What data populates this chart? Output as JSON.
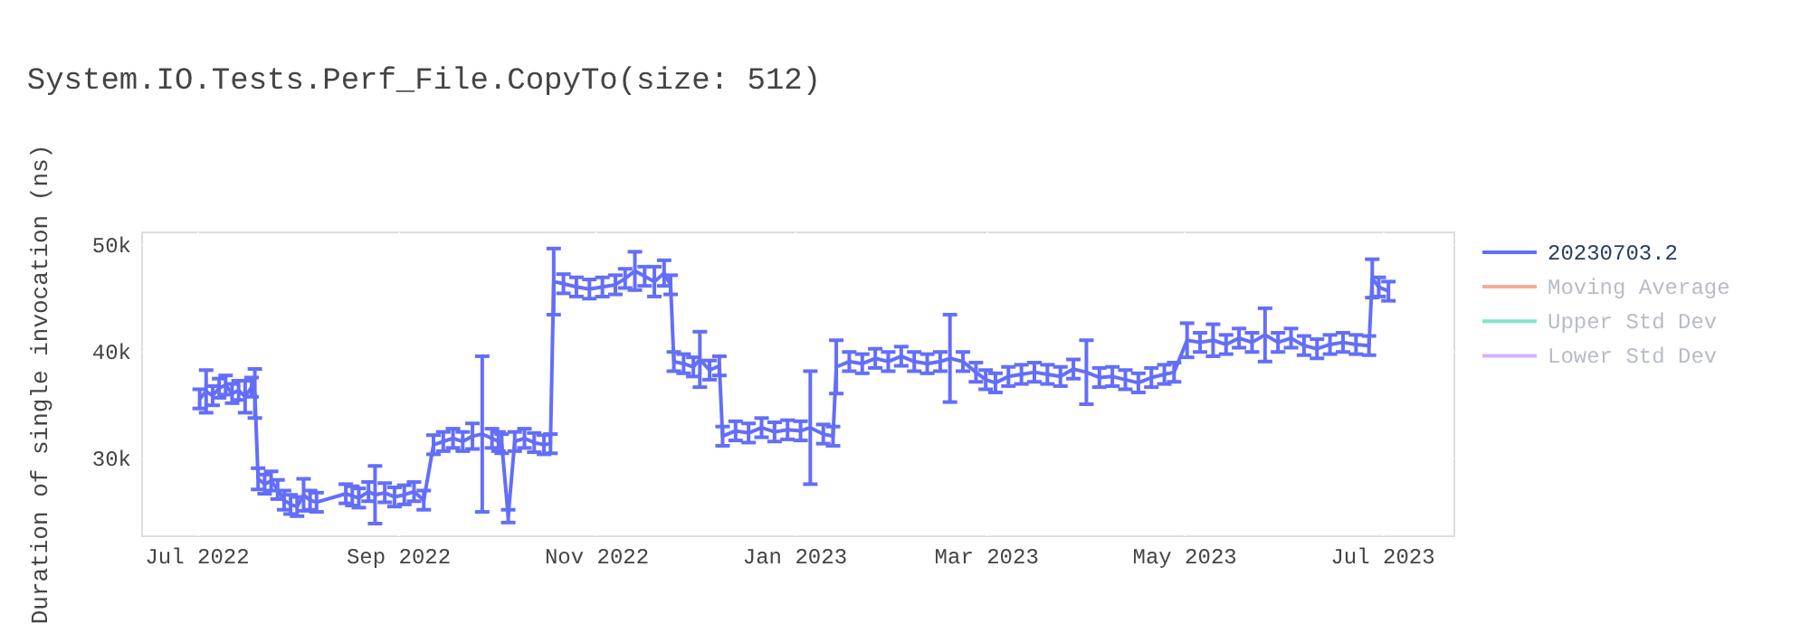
{
  "chart_data": {
    "type": "line",
    "title": "System.IO.Tests.Perf_File.CopyTo(size: 512)",
    "ylabel": "Duration of single invocation (ns)",
    "xlim": [
      "2022-06-14",
      "2023-07-23"
    ],
    "ylim": [
      22700,
      51200
    ],
    "xticks": [
      {
        "value": "2022-07-01",
        "label": "Jul 2022"
      },
      {
        "value": "2022-09-01",
        "label": "Sep 2022"
      },
      {
        "value": "2022-11-01",
        "label": "Nov 2022"
      },
      {
        "value": "2023-01-01",
        "label": "Jan 2023"
      },
      {
        "value": "2023-03-01",
        "label": "Mar 2023"
      },
      {
        "value": "2023-05-01",
        "label": "May 2023"
      },
      {
        "value": "2023-07-01",
        "label": "Jul 2023"
      }
    ],
    "yticks": [
      {
        "value": 30000,
        "label": "30k"
      },
      {
        "value": 40000,
        "label": "40k"
      },
      {
        "value": 50000,
        "label": "50k"
      }
    ],
    "grid": true,
    "legend": "top right",
    "marker": "none",
    "line_style": "solid",
    "series": [
      {
        "name": "20230703.2",
        "color": "#636efa",
        "x": [
          "2022-07-02",
          "2022-07-04",
          "2022-07-06",
          "2022-07-08",
          "2022-07-10",
          "2022-07-12",
          "2022-07-14",
          "2022-07-16",
          "2022-07-18",
          "2022-07-19",
          "2022-07-20",
          "2022-07-22",
          "2022-07-24",
          "2022-07-26",
          "2022-07-28",
          "2022-07-30",
          "2022-08-01",
          "2022-08-03",
          "2022-08-05",
          "2022-08-07",
          "2022-08-16",
          "2022-08-18",
          "2022-08-20",
          "2022-08-23",
          "2022-08-25",
          "2022-08-28",
          "2022-08-31",
          "2022-09-03",
          "2022-09-06",
          "2022-09-09",
          "2022-09-12",
          "2022-09-15",
          "2022-09-18",
          "2022-09-21",
          "2022-09-24",
          "2022-09-27",
          "2022-09-30",
          "2022-10-02",
          "2022-10-03",
          "2022-10-05",
          "2022-10-07",
          "2022-10-10",
          "2022-10-13",
          "2022-10-16",
          "2022-10-18",
          "2022-10-19",
          "2022-10-22",
          "2022-10-26",
          "2022-10-30",
          "2022-11-03",
          "2022-11-07",
          "2022-11-10",
          "2022-11-13",
          "2022-11-16",
          "2022-11-19",
          "2022-11-22",
          "2022-11-24",
          "2022-11-25",
          "2022-11-28",
          "2022-12-01",
          "2022-12-03",
          "2022-12-06",
          "2022-12-09",
          "2022-12-10",
          "2022-12-14",
          "2022-12-18",
          "2022-12-22",
          "2022-12-26",
          "2022-12-30",
          "2023-01-03",
          "2023-01-06",
          "2023-01-10",
          "2023-01-13",
          "2023-01-14",
          "2023-01-18",
          "2023-01-22",
          "2023-01-26",
          "2023-01-30",
          "2023-02-03",
          "2023-02-07",
          "2023-02-11",
          "2023-02-15",
          "2023-02-18",
          "2023-02-22",
          "2023-02-26",
          "2023-03-01",
          "2023-03-04",
          "2023-03-08",
          "2023-03-12",
          "2023-03-16",
          "2023-03-20",
          "2023-03-24",
          "2023-03-28",
          "2023-04-01",
          "2023-04-05",
          "2023-04-09",
          "2023-04-13",
          "2023-04-17",
          "2023-04-21",
          "2023-04-25",
          "2023-04-28",
          "2023-05-02",
          "2023-05-06",
          "2023-05-10",
          "2023-05-14",
          "2023-05-18",
          "2023-05-22",
          "2023-05-26",
          "2023-05-30",
          "2023-06-03",
          "2023-06-07",
          "2023-06-11",
          "2023-06-15",
          "2023-06-19",
          "2023-06-23",
          "2023-06-27",
          "2023-06-28",
          "2023-06-30",
          "2023-07-03"
        ],
        "values": [
          35500,
          36200,
          35800,
          36500,
          36800,
          36000,
          36300,
          35700,
          36600,
          36000,
          28000,
          27500,
          27800,
          27000,
          26000,
          25600,
          25400,
          26500,
          26000,
          25800,
          26600,
          26400,
          26200,
          26800,
          26500,
          26700,
          26300,
          26500,
          26800,
          26000,
          31200,
          31500,
          31800,
          31500,
          32000,
          32200,
          31800,
          31500,
          31300,
          24500,
          31500,
          31800,
          31400,
          31200,
          31300,
          46500,
          46300,
          46000,
          45800,
          46000,
          46200,
          46800,
          47500,
          47000,
          46500,
          47300,
          46200,
          39000,
          38800,
          38500,
          39200,
          38200,
          38600,
          32000,
          32500,
          32300,
          32800,
          32400,
          32600,
          32500,
          32800,
          32200,
          32000,
          38500,
          39000,
          38800,
          39300,
          39000,
          39500,
          39000,
          38800,
          39000,
          39300,
          39000,
          38000,
          37300,
          37000,
          37600,
          37800,
          38000,
          37800,
          37600,
          38300,
          38000,
          37500,
          37600,
          37300,
          37000,
          37500,
          37800,
          38000,
          41000,
          40800,
          41000,
          40600,
          41200,
          40800,
          41500,
          40800,
          41200,
          40500,
          40200,
          40600,
          40800,
          40600,
          40500,
          46800,
          46000,
          45600
        ],
        "errors": [
          900,
          2000,
          900,
          900,
          900,
          900,
          900,
          1500,
          900,
          2300,
          1000,
          900,
          900,
          900,
          900,
          900,
          900,
          1500,
          900,
          900,
          900,
          900,
          900,
          900,
          2700,
          900,
          900,
          900,
          900,
          900,
          900,
          900,
          900,
          900,
          1200,
          7300,
          900,
          900,
          900,
          600,
          900,
          900,
          900,
          900,
          900,
          3100,
          900,
          900,
          900,
          900,
          900,
          900,
          1800,
          900,
          1400,
          1200,
          900,
          900,
          900,
          900,
          2600,
          900,
          900,
          900,
          900,
          900,
          900,
          900,
          900,
          900,
          5300,
          900,
          900,
          2500,
          900,
          900,
          900,
          900,
          900,
          900,
          900,
          900,
          4100,
          900,
          900,
          900,
          900,
          900,
          900,
          900,
          900,
          900,
          900,
          3000,
          900,
          900,
          900,
          900,
          900,
          900,
          900,
          1600,
          900,
          1500,
          900,
          900,
          900,
          2500,
          900,
          900,
          900,
          900,
          900,
          900,
          900,
          900,
          1800,
          900,
          900
        ]
      },
      {
        "name": "Moving Average",
        "color": "#f7aa9d"
      },
      {
        "name": "Upper Std Dev",
        "color": "#80e5ca"
      },
      {
        "name": "Lower Std Dev",
        "color": "#d5b1fc"
      }
    ]
  }
}
